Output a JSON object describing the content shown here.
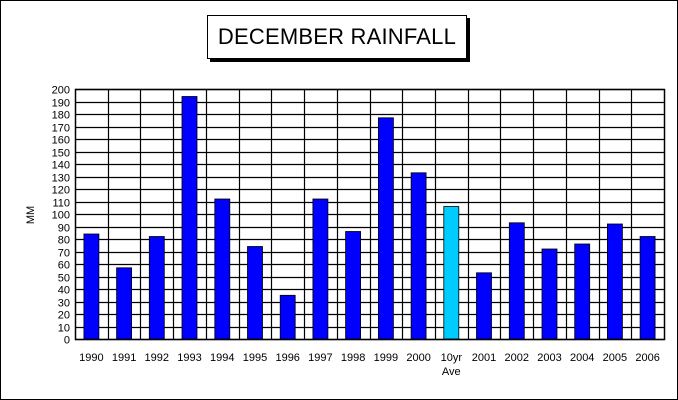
{
  "chart_data": {
    "type": "bar",
    "title": "DECEMBER RAINFALL",
    "xlabel": "",
    "ylabel": "MM",
    "ylim": [
      0,
      200
    ],
    "y_tick_step": 10,
    "grid": true,
    "categories": [
      "1990",
      "1991",
      "1992",
      "1993",
      "1994",
      "1995",
      "1996",
      "1997",
      "1998",
      "1999",
      "2000",
      "10yr Ave",
      "2001",
      "2002",
      "2003",
      "2004",
      "2005",
      "2006"
    ],
    "category_lines": [
      [
        "1990"
      ],
      [
        "1991"
      ],
      [
        "1992"
      ],
      [
        "1993"
      ],
      [
        "1994"
      ],
      [
        "1995"
      ],
      [
        "1996"
      ],
      [
        "1997"
      ],
      [
        "1998"
      ],
      [
        "1999"
      ],
      [
        "2000"
      ],
      [
        "10yr",
        "Ave"
      ],
      [
        "2001"
      ],
      [
        "2002"
      ],
      [
        "2003"
      ],
      [
        "2004"
      ],
      [
        "2005"
      ],
      [
        "2006"
      ]
    ],
    "values": [
      84,
      57,
      82,
      194,
      112,
      74,
      35,
      112,
      86,
      177,
      133,
      106,
      53,
      93,
      72,
      76,
      92,
      82
    ],
    "highlight_index": 11,
    "colors": {
      "bar": "#0000ff",
      "highlight": "#00ccff",
      "grid": "#000000",
      "background": "#ffffff"
    }
  }
}
